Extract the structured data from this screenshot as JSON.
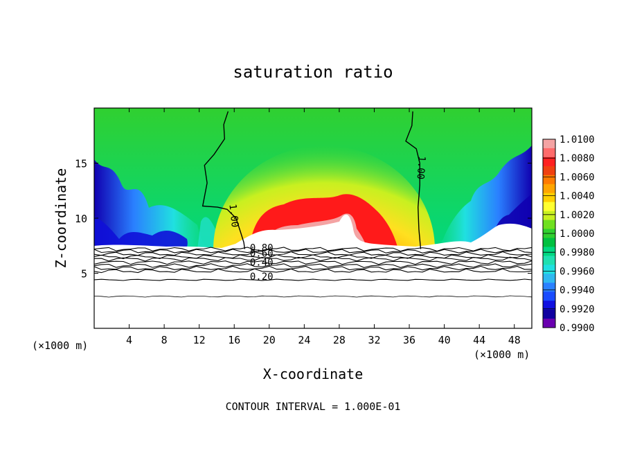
{
  "chart_data": {
    "type": "heatmap",
    "title": "saturation ratio",
    "xlabel": "X-coordinate",
    "ylabel": "Z-coordinate",
    "x_unit_left": "(×1000 m)",
    "x_unit_right": "(×1000 m)",
    "footer": "CONTOUR INTERVAL = 1.000E-01",
    "xlim": [
      0,
      50
    ],
    "ylim": [
      0,
      20
    ],
    "x_ticks": [
      4,
      8,
      12,
      16,
      20,
      24,
      28,
      32,
      36,
      40,
      44,
      48
    ],
    "y_ticks": [
      5,
      10,
      15
    ],
    "colorbar": {
      "min": 0.99,
      "max": 1.01,
      "labels": [
        "1.0100",
        "1.0080",
        "1.0060",
        "1.0040",
        "1.0020",
        "1.0000",
        "0.9980",
        "0.9960",
        "0.9940",
        "0.9920",
        "0.9900"
      ],
      "colors": [
        "#f4a3a3",
        "#ff6b6b",
        "#ff2020",
        "#f04010",
        "#ff7a00",
        "#ffa500",
        "#ffd000",
        "#ffff30",
        "#c8f020",
        "#70e020",
        "#30d030",
        "#00c040",
        "#00d880",
        "#20e0b0",
        "#20e0e0",
        "#30b8f0",
        "#2a80ff",
        "#1a4cff",
        "#1010e0",
        "#1000a0",
        "#6a00b0"
      ]
    },
    "contour_labels": [
      {
        "text": "1.00",
        "x": 15.6,
        "y": 10.2
      },
      {
        "text": "1.00",
        "x": 37.0,
        "y": 14.6
      },
      {
        "text": "0.80",
        "x": 17.7,
        "y": 7.0
      },
      {
        "text": "0.60",
        "x": 17.7,
        "y": 6.5
      },
      {
        "text": "0.40",
        "x": 17.7,
        "y": 5.7
      },
      {
        "text": "0.20",
        "x": 17.7,
        "y": 4.4
      }
    ],
    "contour_levels_below": [
      7.2,
      7.0,
      6.75,
      6.5,
      6.3,
      6.0,
      5.7,
      5.45,
      5.2,
      4.4,
      2.9
    ]
  }
}
